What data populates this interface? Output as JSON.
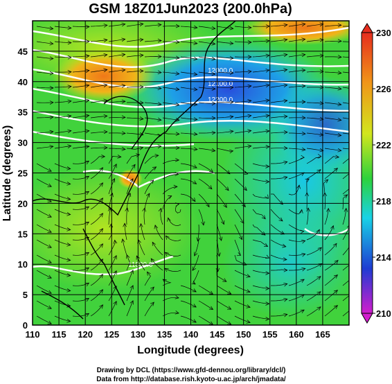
{
  "title": "GSM 18Z01Jun2023 (200.0hPa)",
  "xlabel": "Longitude (degrees)",
  "ylabel": "Latitude  (degrees)",
  "x_ticks": [
    "110",
    "115",
    "120",
    "125",
    "130",
    "135",
    "140",
    "145",
    "150",
    "155",
    "160",
    "165"
  ],
  "y_ticks": [
    "0",
    "5",
    "10",
    "15",
    "20",
    "25",
    "30",
    "35",
    "40",
    "45"
  ],
  "colorbar_ticks": [
    "230",
    "226",
    "222",
    "218",
    "214",
    "210"
  ],
  "contour_labels": [
    "12000.0",
    "12100.0",
    "12200.0",
    "11800.0"
  ],
  "credit_line1": "Drawing by DCL (https://www.gfd-dennou.org/library/dcl/)",
  "credit_line2": "Data from http://database.rish.kyoto-u.ac.jp/arch/jmadata/",
  "colors": {
    "magenta": "#d21ecd",
    "blue": "#1e3cd2",
    "cyan": "#19d2e6",
    "green": "#2dd23c",
    "yellow": "#d2e61e",
    "orange": "#f09619",
    "red": "#e62d1e"
  },
  "map_data": {
    "lon_range": [
      110,
      170
    ],
    "lat_range": [
      0,
      50
    ],
    "colorbar_range": [
      210,
      230
    ]
  }
}
